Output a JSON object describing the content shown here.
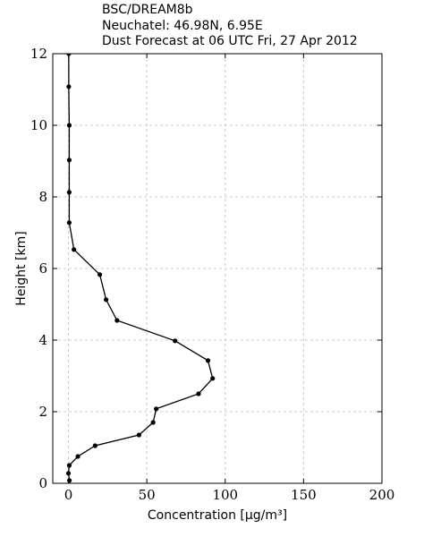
{
  "chart_data": {
    "type": "line",
    "title_lines": [
      "BSC/DREAM8b",
      "Neuchatel: 46.98N, 6.95E",
      "Dust Forecast at 06 UTC Fri, 27 Apr 2012"
    ],
    "xlabel": "Concentration [μg/m³]",
    "ylabel": "Height [km]",
    "x": [
      0.6,
      0,
      0.5,
      6,
      17,
      45,
      54,
      56,
      83,
      92,
      89,
      68,
      31,
      24,
      20,
      3.5,
      0.5,
      0.5,
      0.5,
      0.5,
      0.2,
      0.2
    ],
    "y": [
      0.08,
      0.28,
      0.5,
      0.75,
      1.05,
      1.35,
      1.7,
      2.08,
      2.5,
      2.93,
      3.43,
      3.98,
      4.55,
      5.13,
      5.83,
      6.53,
      7.28,
      8.13,
      9.03,
      10.0,
      11.08,
      12.0
    ],
    "color": "#000000",
    "xlim": [
      -10,
      200
    ],
    "ylim": [
      0,
      12
    ],
    "xticks": [
      0,
      50,
      100,
      150,
      200
    ],
    "yticks": [
      0,
      2,
      4,
      6,
      8,
      10,
      12
    ],
    "grid": true
  }
}
